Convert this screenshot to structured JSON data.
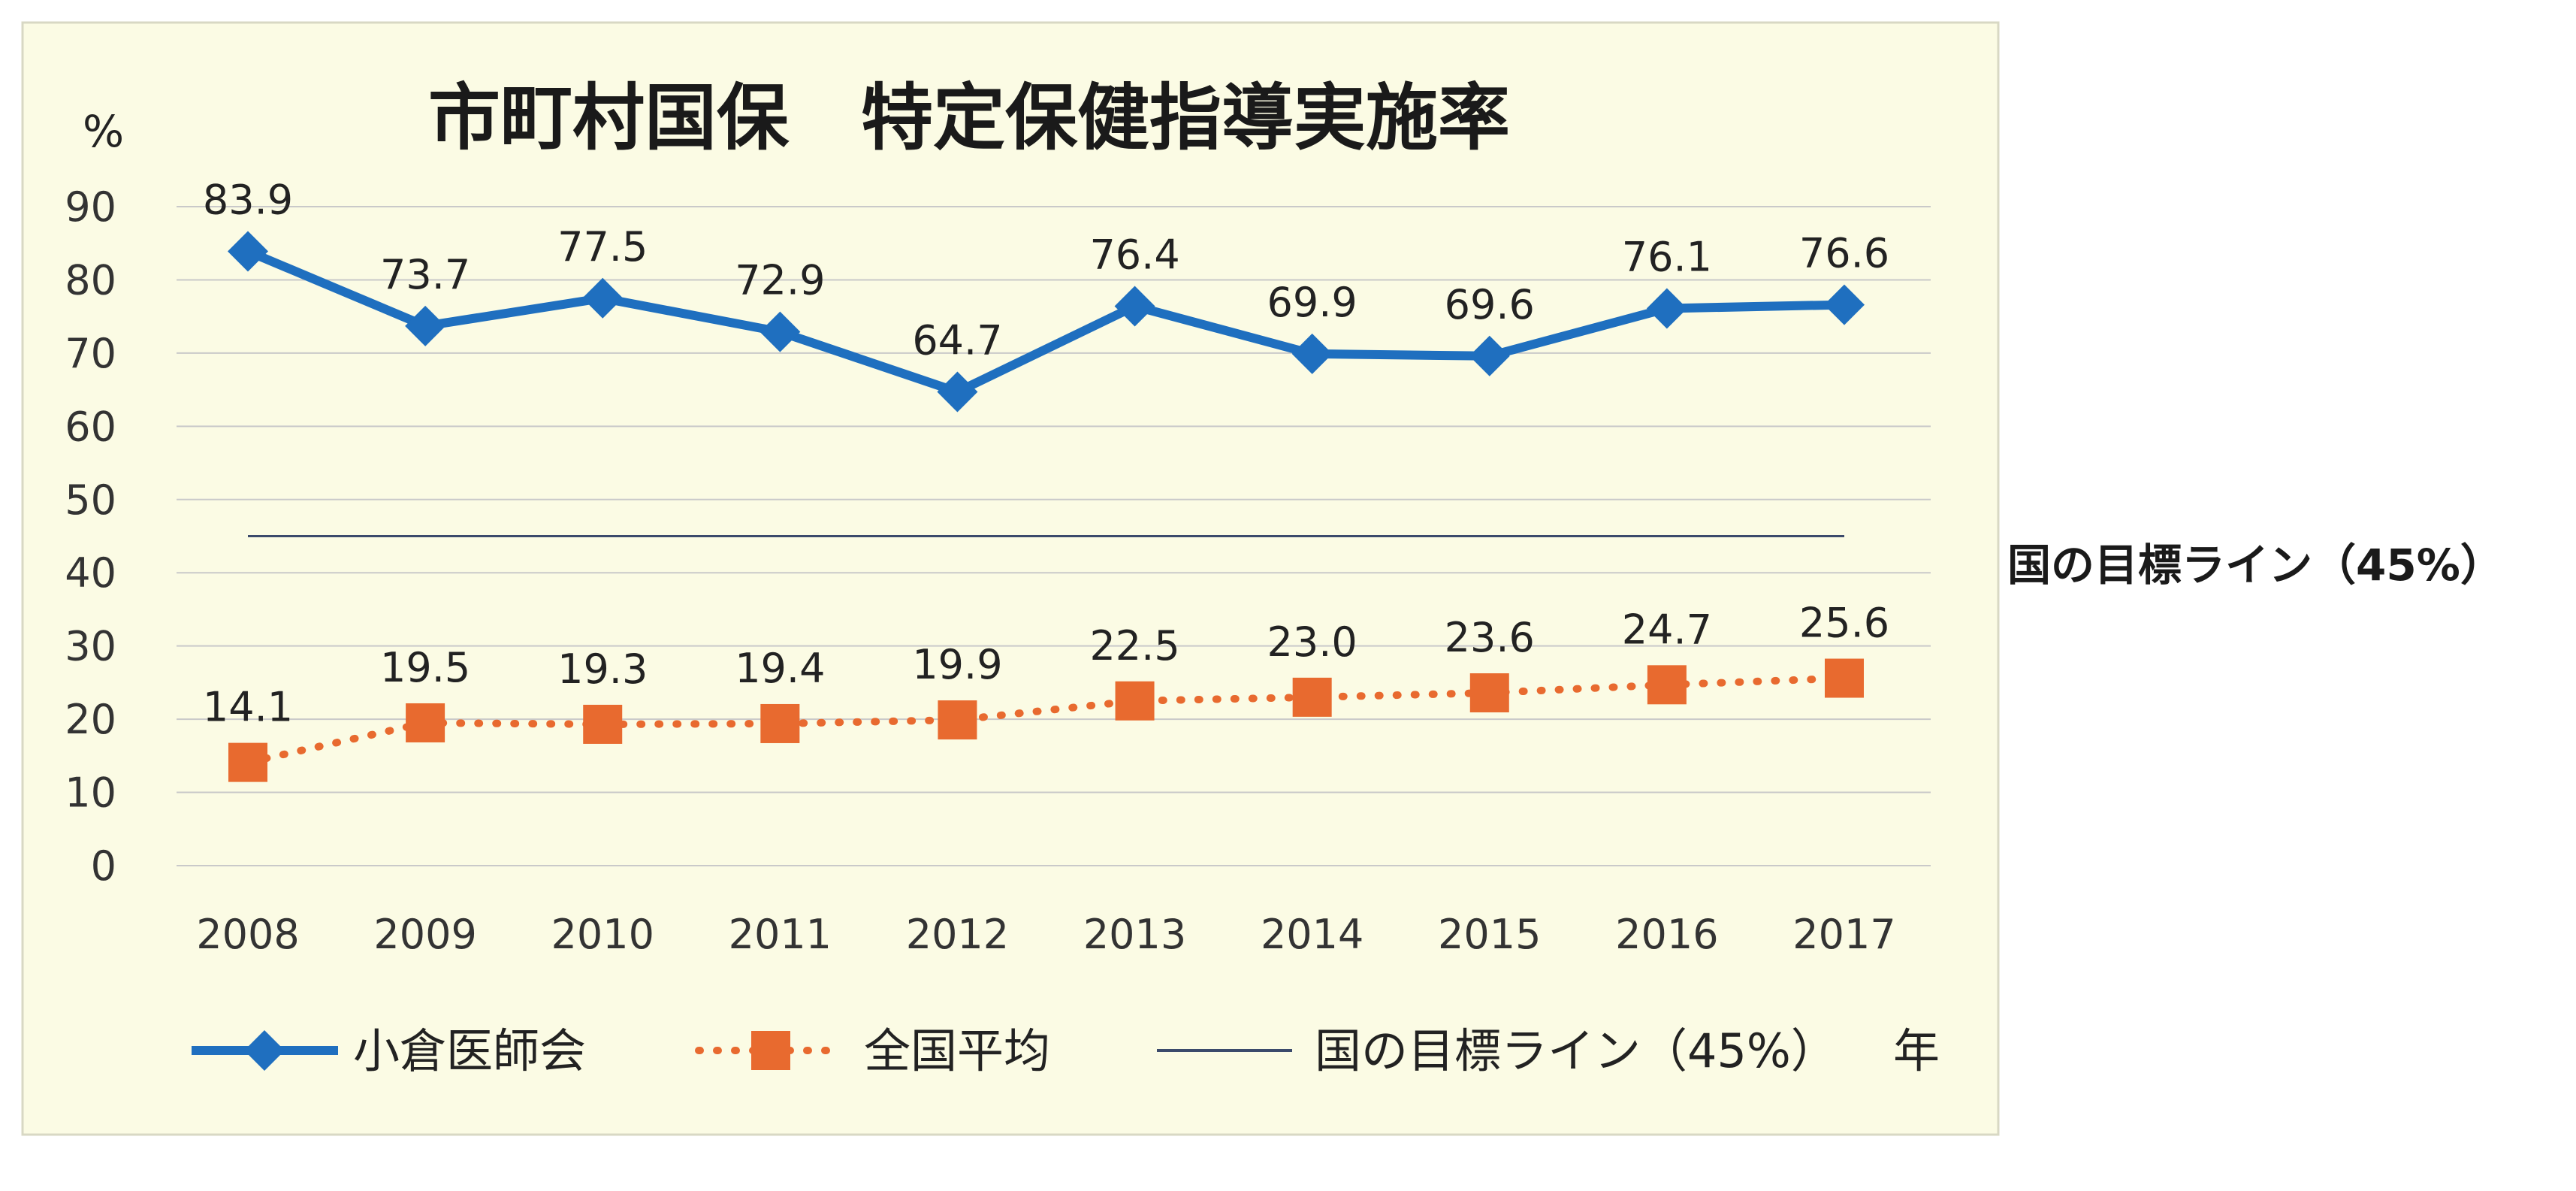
{
  "title": "市町村国保　特定保健指導実施率",
  "y_unit": "%",
  "x_unit": "年",
  "side_label": "国の目標ライン（45%）",
  "colors": {
    "background": "#fbfbe4",
    "series1": "#1f6fbf",
    "series2": "#e86a2f",
    "target_line": "#3b4a6b"
  },
  "chart_data": {
    "type": "line",
    "title": "市町村国保　特定保健指導実施率",
    "xlabel": "年",
    "ylabel": "%",
    "ylim": [
      0,
      90
    ],
    "yticks": [
      0,
      10,
      20,
      30,
      40,
      50,
      60,
      70,
      80,
      90
    ],
    "grid": true,
    "legend_position": "bottom",
    "categories": [
      "2008",
      "2009",
      "2010",
      "2011",
      "2012",
      "2013",
      "2014",
      "2015",
      "2016",
      "2017"
    ],
    "series": [
      {
        "name": "小倉医師会",
        "marker": "diamond",
        "line_style": "solid",
        "color": "#1f6fbf",
        "values": [
          83.9,
          73.7,
          77.5,
          72.9,
          64.7,
          76.4,
          69.9,
          69.6,
          76.1,
          76.6
        ],
        "labels": [
          "83.9",
          "73.7",
          "77.5",
          "72.9",
          "64.7",
          "76.4",
          "69.9",
          "69.6",
          "76.1",
          "76.6"
        ]
      },
      {
        "name": "全国平均",
        "marker": "square",
        "line_style": "dotted",
        "color": "#e86a2f",
        "values": [
          14.1,
          19.5,
          19.3,
          19.4,
          19.9,
          22.5,
          23.0,
          23.6,
          24.7,
          25.6
        ],
        "labels": [
          "14.1",
          "19.5",
          "19.3",
          "19.4",
          "19.9",
          "22.5",
          "23.0",
          "23.6",
          "24.7",
          "25.6"
        ]
      }
    ],
    "reference_lines": [
      {
        "name": "国の目標ライン（45%）",
        "value": 45,
        "color": "#3b4a6b"
      }
    ]
  }
}
